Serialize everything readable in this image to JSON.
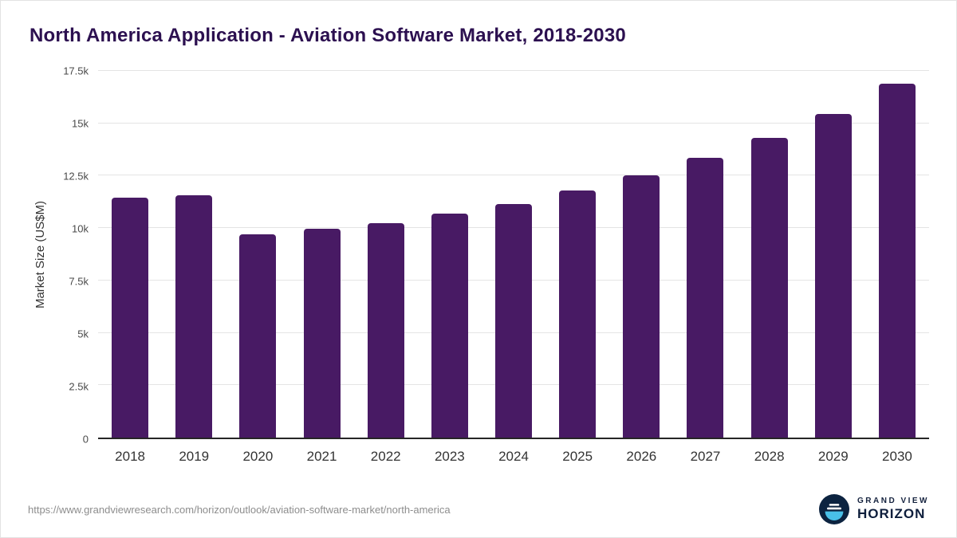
{
  "header": {
    "title": "North America Application - Aviation Software Market, 2018-2030"
  },
  "chart_data": {
    "type": "bar",
    "title": "North America Application - Aviation Software Market, 2018-2030",
    "categories": [
      "2018",
      "2019",
      "2020",
      "2021",
      "2022",
      "2023",
      "2024",
      "2025",
      "2026",
      "2027",
      "2028",
      "2029",
      "2030"
    ],
    "values": [
      11450,
      11550,
      9700,
      9950,
      10250,
      10700,
      11150,
      11800,
      12500,
      13350,
      14300,
      15450,
      16900
    ],
    "xlabel": "",
    "ylabel": "Market Size (US$M)",
    "ylim": [
      0,
      17500
    ],
    "ytick_step": 2500,
    "ytick_labels": [
      "0",
      "2.5k",
      "5k",
      "7.5k",
      "10k",
      "12.5k",
      "15k",
      "17.5k"
    ],
    "grid": true,
    "legend": "none",
    "bar_color": "#481a64"
  },
  "colors": {
    "bar": "#481a64",
    "title": "#2c1050",
    "axis_line": "#262626",
    "gridline": "#e4e4e4",
    "logo_navy": "#0c2340",
    "logo_blue": "#49c0e8"
  },
  "footer": {
    "source_url": "https://www.grandviewresearch.com/horizon/outlook/aviation-software-market/north-america",
    "logo_top": "GRAND VIEW",
    "logo_bottom": "HORIZON"
  }
}
